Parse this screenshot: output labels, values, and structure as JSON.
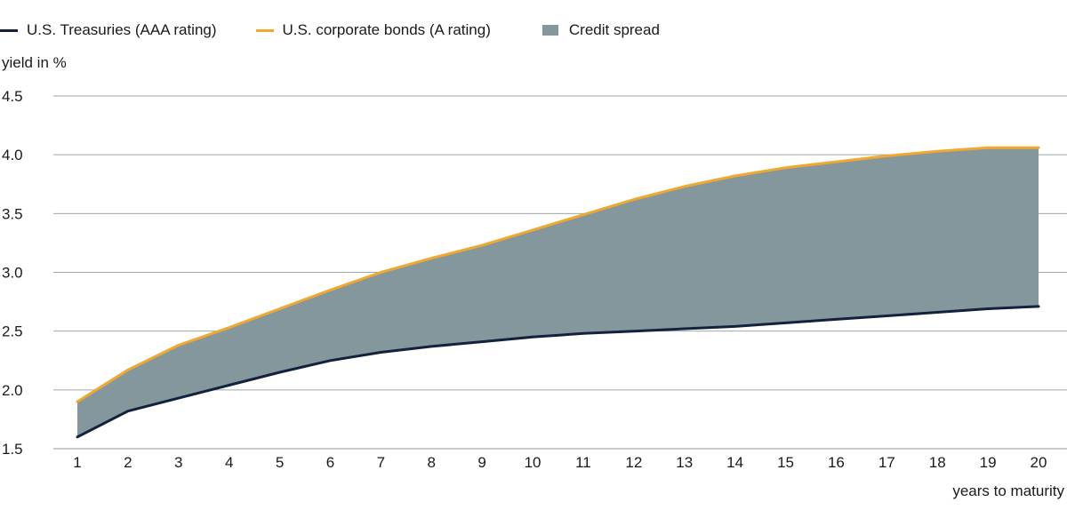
{
  "chart_data": {
    "type": "area",
    "xlabel": "years to maturity",
    "ylabel": "yield in %",
    "x": [
      1,
      2,
      3,
      4,
      5,
      6,
      7,
      8,
      9,
      10,
      11,
      12,
      13,
      14,
      15,
      16,
      17,
      18,
      19,
      20
    ],
    "ylim": [
      1.5,
      4.5
    ],
    "yticks": [
      "1.5",
      "2.0",
      "2.5",
      "3.0",
      "3.5",
      "4.0",
      "4.5"
    ],
    "xticks": [
      "1",
      "2",
      "3",
      "4",
      "5",
      "6",
      "7",
      "8",
      "9",
      "10",
      "11",
      "12",
      "13",
      "14",
      "15",
      "16",
      "17",
      "18",
      "19",
      "20"
    ],
    "grid": true,
    "legend_position": "top-left",
    "series": [
      {
        "name": "U.S. Treasuries (AAA rating)",
        "color": "#14213d",
        "values": [
          1.6,
          1.82,
          1.93,
          2.04,
          2.15,
          2.25,
          2.32,
          2.37,
          2.41,
          2.45,
          2.48,
          2.5,
          2.52,
          2.54,
          2.57,
          2.6,
          2.63,
          2.66,
          2.69,
          2.71
        ]
      },
      {
        "name": "U.S. corporate bonds (A rating)",
        "color": "#f0a830",
        "values": [
          1.9,
          2.17,
          2.38,
          2.53,
          2.69,
          2.85,
          3.0,
          3.12,
          3.23,
          3.36,
          3.49,
          3.62,
          3.73,
          3.82,
          3.89,
          3.94,
          3.99,
          4.03,
          4.06,
          4.06
        ]
      }
    ],
    "spread": {
      "name": "Credit spread",
      "color": "#84979c"
    }
  }
}
